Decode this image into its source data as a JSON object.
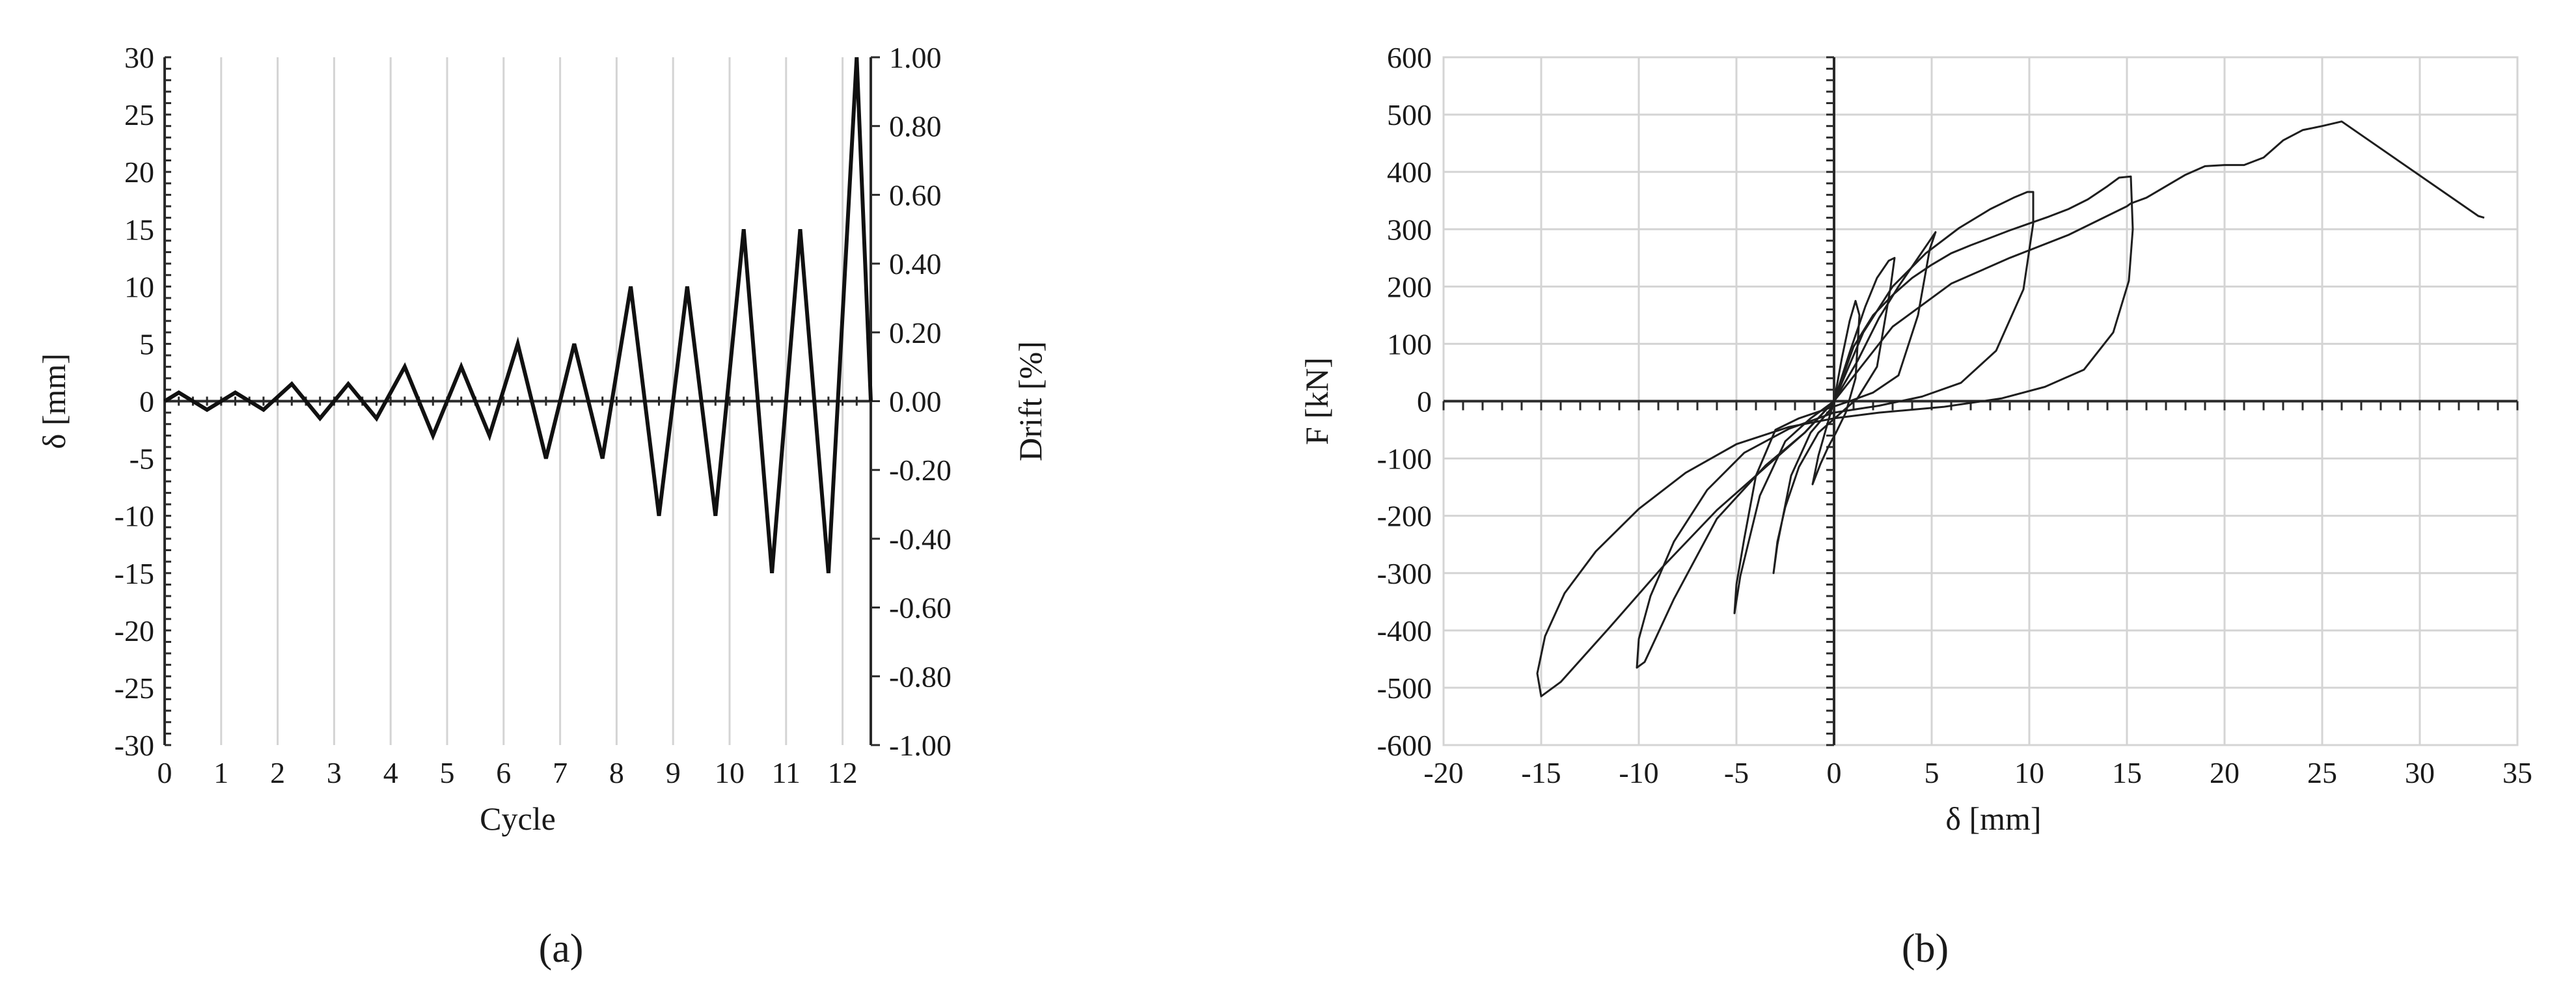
{
  "chart_data": [
    {
      "type": "line",
      "panel_label": "(a)",
      "xlabel": "Cycle",
      "ylabel": "δ [mm]",
      "y2label": "Drift [%]",
      "xlim": [
        0,
        12.5
      ],
      "ylim": [
        -30,
        30
      ],
      "y2lim": [
        -1.0,
        1.0
      ],
      "xticks": [
        0,
        1,
        2,
        3,
        4,
        5,
        6,
        7,
        8,
        9,
        10,
        11,
        12
      ],
      "yticks": [
        -30,
        -25,
        -20,
        -15,
        -10,
        -5,
        0,
        5,
        10,
        15,
        20,
        25,
        30
      ],
      "y2ticks": [
        "-1.00",
        "-0.80",
        "-0.60",
        "-0.40",
        "-0.20",
        "0.00",
        "0.20",
        "0.40",
        "0.60",
        "0.80",
        "1.00"
      ],
      "grid": true,
      "series": [
        {
          "x": [
            0,
            0.25,
            0.75,
            1.25,
            1.75,
            2.25,
            2.75,
            3.25,
            3.75,
            4.25,
            4.75,
            5.25,
            5.75,
            6.25,
            6.75,
            7.25,
            7.75,
            8.25,
            8.75,
            9.25,
            9.75,
            10.25,
            10.75,
            11.25,
            11.75,
            12.25,
            12.5
          ],
          "y": [
            0,
            0.75,
            -0.75,
            0.75,
            -0.75,
            1.5,
            -1.5,
            1.5,
            -1.5,
            3,
            -3,
            3,
            -3,
            5,
            -5,
            5,
            -5,
            10,
            -10,
            10,
            -10,
            15,
            -15,
            15,
            -15,
            30,
            0
          ]
        }
      ]
    },
    {
      "type": "line",
      "panel_label": "(b)",
      "xlabel": "δ [mm]",
      "ylabel": "F [kN]",
      "xlim": [
        -20,
        35
      ],
      "ylim": [
        -600,
        600
      ],
      "xticks": [
        -20,
        -15,
        -10,
        -5,
        0,
        5,
        10,
        15,
        20,
        25,
        30,
        35
      ],
      "yticks": [
        -600,
        -500,
        -400,
        -300,
        -200,
        -100,
        0,
        100,
        200,
        300,
        400,
        500,
        600
      ],
      "grid": true,
      "series": [
        {
          "x": [
            0,
            0.4,
            0.8,
            1.1,
            1.3,
            1.1,
            0.6,
            0.1,
            -0.3,
            -0.7,
            -1.1,
            -0.8,
            -0.3,
            0
          ],
          "y": [
            0,
            75,
            140,
            175,
            150,
            40,
            -20,
            -55,
            -80,
            -110,
            -145,
            -95,
            -35,
            0
          ]
        },
        {
          "x": [
            0,
            0.8,
            1.6,
            2.2,
            2.8,
            3.1,
            2.9,
            2.2,
            1.2,
            0.2,
            -0.8,
            -1.8,
            -2.5,
            -2.9,
            -3.1,
            -2.9,
            -2.2,
            -1.2,
            -0.2,
            0
          ],
          "y": [
            0,
            85,
            165,
            215,
            245,
            250,
            200,
            60,
            5,
            -25,
            -55,
            -115,
            -185,
            -245,
            -300,
            -250,
            -130,
            -55,
            -15,
            0
          ]
        },
        {
          "x": [
            0,
            1.2,
            2.3,
            3.3,
            4.2,
            4.8,
            5.1,
            5.2,
            4.9,
            4.3,
            3.3,
            2,
            0.8,
            -0.5,
            -1.8,
            -3,
            -4,
            -4.6,
            -5,
            -5.1,
            -4.8,
            -3.8,
            -2.5,
            -1.2,
            0
          ],
          "y": [
            0,
            70,
            145,
            200,
            245,
            275,
            290,
            295,
            265,
            150,
            45,
            15,
            0,
            -15,
            -30,
            -50,
            -130,
            -240,
            -320,
            -370,
            -305,
            -165,
            -70,
            -30,
            0
          ]
        },
        {
          "x": [
            0,
            1.5,
            3,
            4.7,
            6.4,
            8,
            9.2,
            9.9,
            10.2,
            10.2,
            9.7,
            8.3,
            6.5,
            4.5,
            2.3,
            0,
            -2.3,
            -4.6,
            -6.5,
            -8.2,
            -9.4,
            -10,
            -10.1,
            -9.7,
            -8.2,
            -6,
            -3.5,
            -1.5,
            0
          ],
          "y": [
            0,
            120,
            200,
            258,
            302,
            335,
            355,
            365,
            365,
            310,
            195,
            88,
            32,
            8,
            -8,
            -20,
            -48,
            -90,
            -155,
            -245,
            -340,
            -415,
            -465,
            -455,
            -345,
            -205,
            -112,
            -55,
            0
          ]
        },
        {
          "x": [
            0,
            1,
            2,
            3,
            4,
            5,
            6,
            7,
            8,
            9,
            10,
            11,
            12,
            13,
            14,
            14.6,
            15.2,
            15.3,
            15.1,
            14.3,
            12.8,
            10.8,
            8.6,
            5.6,
            2.3,
            0,
            -2.3,
            -5,
            -7.6,
            -10,
            -12.2,
            -13.8,
            -14.8,
            -15.2,
            -15,
            -14,
            -11.5,
            -8.8,
            -6,
            -3.5,
            -1.5,
            0
          ],
          "y": [
            0,
            95,
            150,
            185,
            215,
            238,
            258,
            272,
            285,
            298,
            310,
            322,
            335,
            352,
            375,
            390,
            392,
            300,
            210,
            120,
            55,
            25,
            5,
            -10,
            -20,
            -30,
            -45,
            -75,
            -125,
            -188,
            -262,
            -335,
            -410,
            -475,
            -515,
            -490,
            -395,
            -290,
            -190,
            -115,
            -55,
            0
          ]
        },
        {
          "x": [
            0,
            3,
            6,
            9,
            12,
            15,
            15.2,
            16,
            17,
            18,
            19,
            20,
            21,
            22,
            23,
            24,
            25,
            26,
            33,
            33.3
          ],
          "y": [
            0,
            130,
            205,
            250,
            290,
            340,
            345,
            355,
            375,
            395,
            410,
            412,
            412,
            425,
            455,
            473,
            480,
            488,
            323,
            320
          ]
        }
      ]
    }
  ]
}
